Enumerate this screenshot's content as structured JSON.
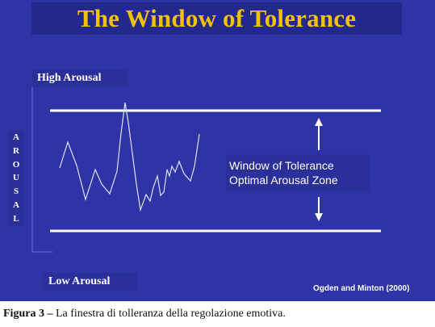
{
  "slide": {
    "title": "The Window of Tolerance",
    "high_label": "High Arousal",
    "low_label": "Low Arousal",
    "vertical_label": [
      "A",
      "R",
      "O",
      "U",
      "S",
      "A",
      "L"
    ],
    "zone_line1": "Window of Tolerance",
    "zone_line2": "Optimal Arousal Zone",
    "citation": "Ogden and Minton (2000)"
  },
  "caption": {
    "prefix": "Figura 3 –",
    "text": " La finestra di tolleranza della regolazione emotiva."
  },
  "colors": {
    "background": "#2e33a6",
    "title": "#f2c200",
    "lines": "#ffffff"
  }
}
